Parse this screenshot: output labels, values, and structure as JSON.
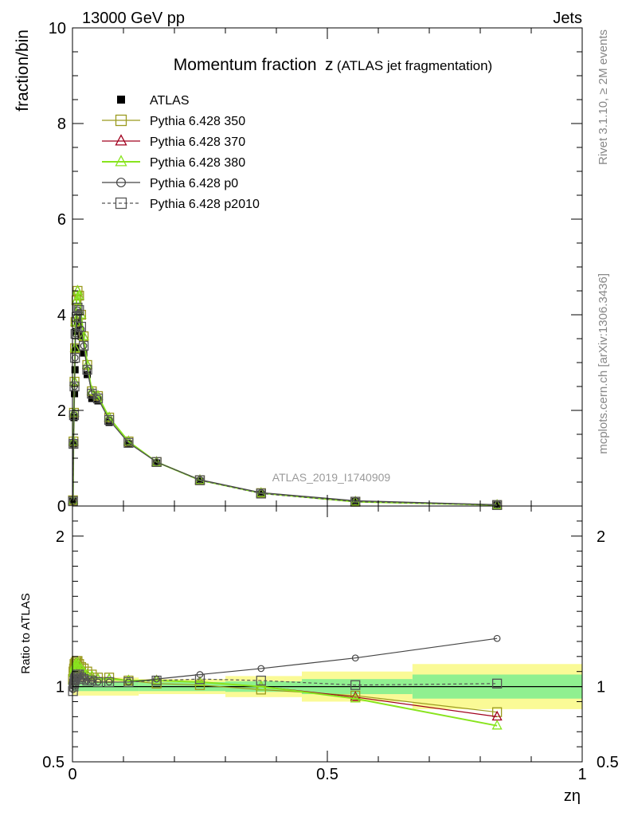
{
  "header": {
    "left": "13000 GeV pp",
    "right": "Jets"
  },
  "side_labels": {
    "rivet": "Rivet 3.1.10, ≥ 2M events",
    "mcplots": "mcplots.cern.ch [arXiv:1306.3436]"
  },
  "watermark": "ATLAS_2019_I1740909",
  "chart_data": [
    {
      "type": "line",
      "title_main": "Momentum fraction",
      "title_var": "z",
      "title_sub": "(ATLAS jet fragmentation)",
      "ylabel": "fraction/bin",
      "xlim": [
        0,
        1
      ],
      "ylim": [
        0,
        10
      ],
      "y_ticks": [
        "0",
        "2",
        "4",
        "6",
        "8",
        "10"
      ],
      "legend_position": "top-left",
      "x": [
        0.001,
        0.002,
        0.003,
        0.004,
        0.005,
        0.006,
        0.008,
        0.01,
        0.013,
        0.017,
        0.022,
        0.029,
        0.038,
        0.05,
        0.072,
        0.11,
        0.165,
        0.25,
        0.37,
        0.555,
        0.833
      ],
      "series": [
        {
          "name": "ATLAS",
          "color": "#000000",
          "marker": "filled-square",
          "values": [
            0.1,
            1.3,
            1.85,
            2.35,
            2.85,
            3.3,
            3.65,
            3.85,
            3.8,
            3.55,
            3.2,
            2.75,
            2.25,
            2.2,
            1.75,
            1.3,
            0.9,
            0.52,
            0.25,
            0.09,
            0.02
          ]
        },
        {
          "name": "Pythia 6.428 350",
          "color": "#9a9a1e",
          "marker": "open-square",
          "values": [
            0.12,
            1.35,
            1.95,
            2.6,
            3.3,
            3.85,
            4.3,
            4.5,
            4.4,
            4.0,
            3.55,
            2.95,
            2.4,
            2.3,
            1.85,
            1.35,
            0.92,
            0.54,
            0.27,
            0.09,
            0.02
          ]
        },
        {
          "name": "Pythia 6.428 370",
          "color": "#a0001e",
          "marker": "open-triangle",
          "values": [
            0.12,
            1.35,
            1.95,
            2.6,
            3.3,
            3.85,
            4.3,
            4.5,
            4.4,
            4.0,
            3.55,
            2.95,
            2.4,
            2.3,
            1.85,
            1.35,
            0.92,
            0.54,
            0.27,
            0.09,
            0.02
          ]
        },
        {
          "name": "Pythia 6.428 380",
          "color": "#88e41e",
          "marker": "open-triangle",
          "values": [
            0.12,
            1.35,
            1.95,
            2.6,
            3.3,
            3.85,
            4.3,
            4.5,
            4.4,
            4.0,
            3.55,
            2.95,
            2.4,
            2.3,
            1.85,
            1.35,
            0.92,
            0.54,
            0.27,
            0.09,
            0.02
          ]
        },
        {
          "name": "Pythia 6.428 p0",
          "color": "#444444",
          "marker": "open-circle",
          "values": [
            0.1,
            1.3,
            1.9,
            2.5,
            3.1,
            3.6,
            3.95,
            4.1,
            4.05,
            3.7,
            3.35,
            2.85,
            2.35,
            2.25,
            1.8,
            1.32,
            0.92,
            0.55,
            0.28,
            0.11,
            0.027
          ]
        },
        {
          "name": "Pythia 6.428 p2010",
          "color": "#555555",
          "marker": "open-square-dashed",
          "values": [
            0.1,
            1.3,
            1.9,
            2.5,
            3.1,
            3.6,
            3.95,
            4.15,
            4.1,
            3.75,
            3.35,
            2.85,
            2.35,
            2.25,
            1.8,
            1.32,
            0.92,
            0.54,
            0.26,
            0.09,
            0.02
          ]
        }
      ]
    },
    {
      "type": "line",
      "ylabel": "Ratio to ATLAS",
      "xlabel": "zη",
      "xlim": [
        0,
        1
      ],
      "ylim": [
        0.5,
        2.2
      ],
      "y_ticks": [
        "0.5",
        "1",
        "2"
      ],
      "x_ticks": [
        "0",
        "0.5",
        "1"
      ],
      "bands": [
        {
          "x0": 0.0,
          "x1": 0.13,
          "stat": 0.03,
          "syst": 0.06
        },
        {
          "x0": 0.13,
          "x1": 0.3,
          "stat": 0.03,
          "syst": 0.05
        },
        {
          "x0": 0.3,
          "x1": 0.45,
          "stat": 0.035,
          "syst": 0.07
        },
        {
          "x0": 0.45,
          "x1": 0.667,
          "stat": 0.05,
          "syst": 0.1
        },
        {
          "x0": 0.667,
          "x1": 1.0,
          "stat": 0.08,
          "syst": 0.15
        }
      ],
      "band_colors": {
        "stat": "#90f090",
        "syst": "#fafa96"
      },
      "x": [
        0.001,
        0.002,
        0.003,
        0.004,
        0.005,
        0.006,
        0.008,
        0.01,
        0.013,
        0.017,
        0.022,
        0.029,
        0.038,
        0.05,
        0.072,
        0.11,
        0.165,
        0.25,
        0.37,
        0.555,
        0.833
      ],
      "series": [
        {
          "name": "Pythia 6.428 350",
          "values": [
            1.05,
            1.1,
            1.12,
            1.15,
            1.15,
            1.16,
            1.17,
            1.17,
            1.15,
            1.13,
            1.12,
            1.1,
            1.08,
            1.06,
            1.06,
            1.04,
            1.02,
            1.01,
            0.98,
            0.94,
            0.83
          ]
        },
        {
          "name": "Pythia 6.428 370",
          "values": [
            1.04,
            1.09,
            1.11,
            1.13,
            1.14,
            1.15,
            1.15,
            1.16,
            1.14,
            1.12,
            1.1,
            1.08,
            1.07,
            1.05,
            1.05,
            1.04,
            1.04,
            1.03,
            1.0,
            0.93,
            0.8
          ]
        },
        {
          "name": "Pythia 6.428 380",
          "values": [
            1.04,
            1.09,
            1.11,
            1.13,
            1.14,
            1.15,
            1.15,
            1.16,
            1.14,
            1.12,
            1.1,
            1.08,
            1.07,
            1.05,
            1.05,
            1.04,
            1.04,
            1.03,
            1.0,
            0.92,
            0.74
          ]
        },
        {
          "name": "Pythia 6.428 p0",
          "values": [
            0.98,
            1.0,
            1.02,
            1.04,
            1.05,
            1.05,
            1.06,
            1.06,
            1.06,
            1.05,
            1.05,
            1.04,
            1.04,
            1.03,
            1.03,
            1.03,
            1.05,
            1.08,
            1.12,
            1.19,
            1.32
          ]
        },
        {
          "name": "Pythia 6.428 p2010",
          "values": [
            0.97,
            1.0,
            1.02,
            1.04,
            1.05,
            1.06,
            1.07,
            1.08,
            1.08,
            1.06,
            1.05,
            1.04,
            1.04,
            1.03,
            1.03,
            1.03,
            1.04,
            1.05,
            1.04,
            1.01,
            1.02
          ]
        }
      ]
    }
  ]
}
